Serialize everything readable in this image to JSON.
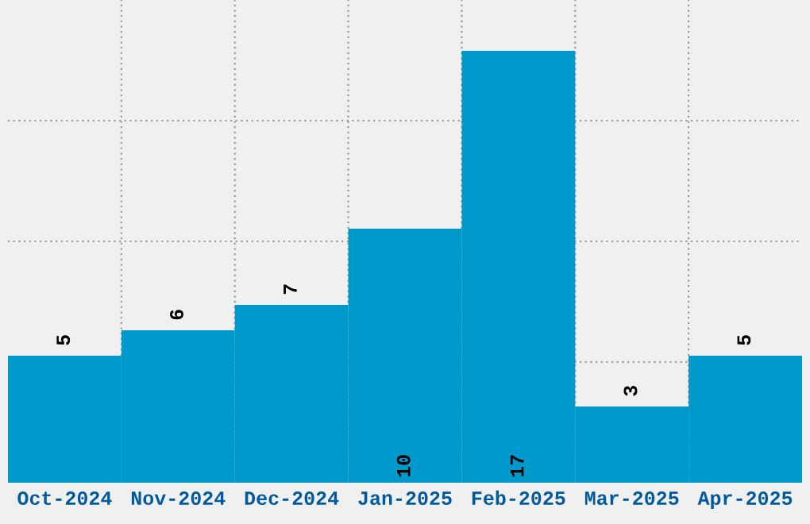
{
  "chart_data": {
    "type": "bar",
    "categories": [
      "Oct-2024",
      "Nov-2024",
      "Dec-2024",
      "Jan-2025",
      "Feb-2025",
      "Mar-2025",
      "Apr-2025"
    ],
    "values": [
      5,
      6,
      7,
      10,
      17,
      3,
      5
    ],
    "color": "#0099cc",
    "ylim": [
      0,
      19
    ],
    "yticks": [
      {
        "value": 4.75,
        "label": null
      },
      {
        "value": 9.5,
        "label": null
      },
      {
        "value": 14.25,
        "label": null
      }
    ],
    "tick_labels": "x",
    "grid": true,
    "data_labels": true
  }
}
